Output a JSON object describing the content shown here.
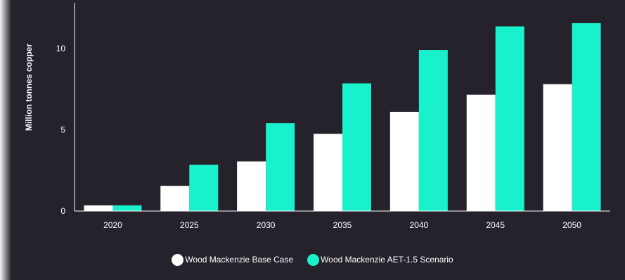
{
  "chart_data": {
    "type": "bar",
    "title": "",
    "xlabel": "",
    "ylabel": "Million tonnes copper",
    "categories": [
      "2020",
      "2025",
      "2030",
      "2035",
      "2040",
      "2045",
      "2050"
    ],
    "series": [
      {
        "name": "Wood Mackenzie Base Case",
        "color": "#ffffff",
        "values": [
          0.35,
          1.55,
          3.05,
          4.75,
          6.1,
          7.15,
          7.8
        ]
      },
      {
        "name": "Wood Mackenzie AET-1.5 Scenario",
        "color": "#19f0cc",
        "values": [
          0.35,
          2.85,
          5.4,
          7.85,
          9.9,
          11.35,
          11.55
        ]
      }
    ],
    "ylim": [
      0,
      12.8
    ],
    "yticks": [
      0,
      5,
      10
    ],
    "grid": false,
    "legend_position": "bottom-center"
  },
  "colors": {
    "background": "#25222c",
    "axis": "#ffffff"
  }
}
